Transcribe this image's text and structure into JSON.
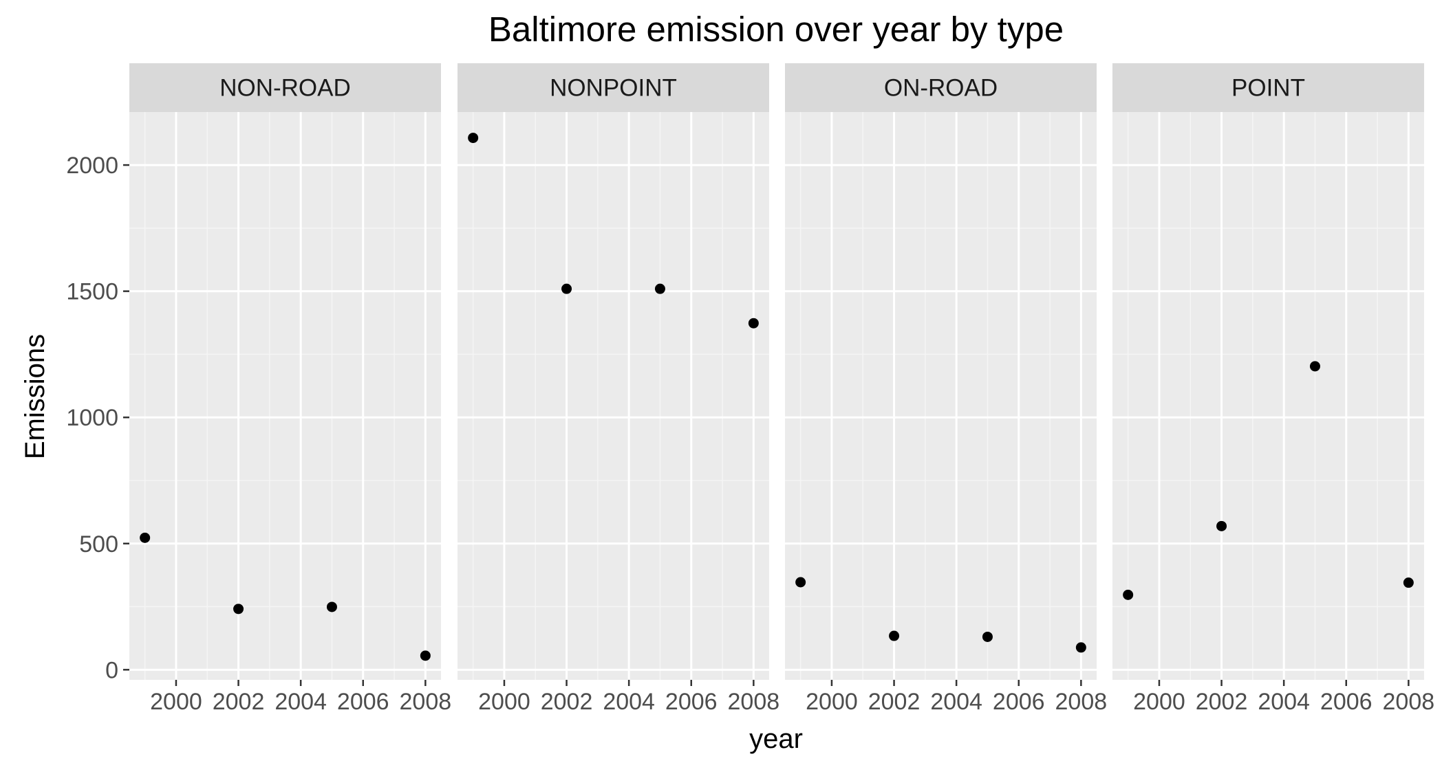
{
  "chart_data": {
    "type": "scatter",
    "title": "Baltimore emission over year by type",
    "xlabel": "year",
    "ylabel": "Emissions",
    "facet_by": "type",
    "xlim": [
      1998.5,
      2008.5
    ],
    "ylim": [
      -40,
      2210
    ],
    "x_ticks": [
      2000,
      2002,
      2004,
      2006,
      2008
    ],
    "x_tick_labels": [
      "2000",
      "2002",
      "2004",
      "2006",
      "2008"
    ],
    "y_ticks": [
      0,
      500,
      1000,
      1500,
      2000
    ],
    "y_tick_labels": [
      "0",
      "500",
      "1000",
      "1500",
      "2000"
    ],
    "grid": true,
    "legend": "none",
    "point_color": "#000000",
    "panel_background": "#ebebeb",
    "strip_background": "#d9d9d9",
    "panels": [
      {
        "label": "NON-ROAD",
        "points": [
          {
            "x": 1999,
            "y": 522.9
          },
          {
            "x": 2002,
            "y": 241.0
          },
          {
            "x": 2005,
            "y": 248.9
          },
          {
            "x": 2008,
            "y": 55.8
          }
        ]
      },
      {
        "label": "NONPOINT",
        "points": [
          {
            "x": 1999,
            "y": 2107.6
          },
          {
            "x": 2002,
            "y": 1509.5
          },
          {
            "x": 2005,
            "y": 1509.5
          },
          {
            "x": 2008,
            "y": 1373.2
          }
        ]
      },
      {
        "label": "ON-ROAD",
        "points": [
          {
            "x": 1999,
            "y": 346.8
          },
          {
            "x": 2002,
            "y": 134.3
          },
          {
            "x": 2005,
            "y": 130.4
          },
          {
            "x": 2008,
            "y": 88.3
          }
        ]
      },
      {
        "label": "POINT",
        "points": [
          {
            "x": 1999,
            "y": 296.8
          },
          {
            "x": 2002,
            "y": 569.3
          },
          {
            "x": 2005,
            "y": 1202.5
          },
          {
            "x": 2008,
            "y": 345.0
          }
        ]
      }
    ]
  }
}
